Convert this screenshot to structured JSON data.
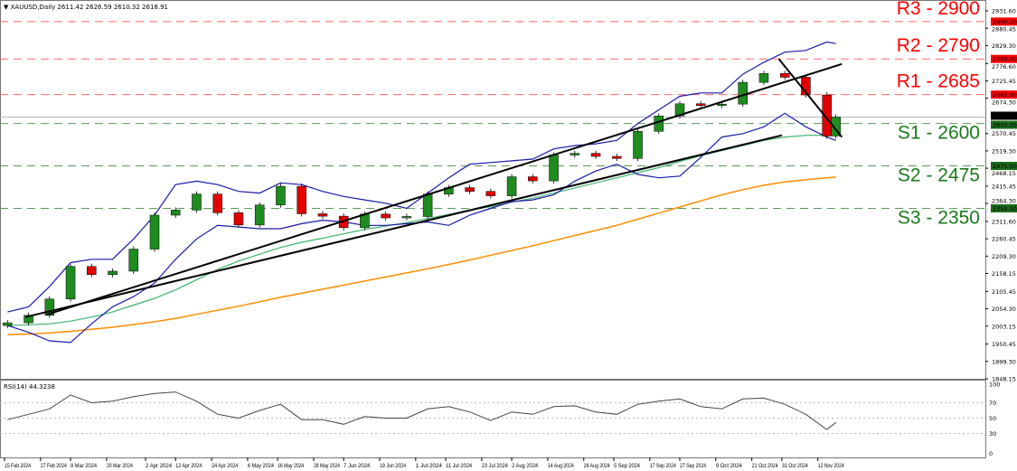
{
  "header": {
    "symbol": "XAUUSD,Daily",
    "open": "2611.42",
    "high": "2626.59",
    "low": "2610.32",
    "close": "2618.91",
    "collapse_icon": "triangle-down-icon"
  },
  "rsi_header": {
    "label": "RSI(14)",
    "value": "44.3238"
  },
  "colors": {
    "resistance": "#ff0000",
    "support": "#1a7a1a",
    "bullish": "#1e8c1e",
    "bearish": "#e00000",
    "bollinger": "#1a1aa8",
    "ma_fast": "#3cb371",
    "ma_slow": "#ff8c00",
    "trendline": "#000000",
    "rsi": "#444444"
  },
  "chart_data": {
    "type": "candlestick",
    "title": "XAUUSD,Daily",
    "ylim": [
      1848.15,
      2931.6
    ],
    "xlim": [
      "2024-02-15",
      "2024-11-20"
    ],
    "grid": false,
    "y_ticks": [
      "2931.60",
      "2880.45",
      "2829.30",
      "2776.60",
      "2725.45",
      "2674.30",
      "2570.45",
      "2519.30",
      "2468.15",
      "2415.45",
      "2364.30",
      "2311.60",
      "2260.45",
      "2209.30",
      "2158.15",
      "2105.45",
      "2054.30",
      "2003.15",
      "1950.45",
      "1899.30",
      "1848.15"
    ],
    "x_ticks": [
      "15 Feb 2024",
      "27 Feb 2024",
      "8 Mar 2024",
      "20 Mar 2024",
      "2 Apr 2024",
      "12 Apr 2024",
      "24 Apr 2024",
      "6 May 2024",
      "16 May 2024",
      "28 May 2024",
      "7 Jun 2024",
      "19 Jun 2024",
      "1 Jul 2024",
      "11 Jul 2024",
      "23 Jul 2024",
      "2 Aug 2024",
      "14 Aug 2024",
      "26 Aug 2024",
      "5 Sep 2024",
      "17 Sep 2024",
      "27 Sep 2024",
      "9 Oct 2024",
      "21 Oct 2024",
      "31 Oct 2024",
      "12 Nov 2024"
    ],
    "x_tick_dates": [
      "2024-02-15",
      "2024-02-27",
      "2024-03-08",
      "2024-03-20",
      "2024-04-02",
      "2024-04-12",
      "2024-04-24",
      "2024-05-06",
      "2024-05-16",
      "2024-05-28",
      "2024-06-07",
      "2024-06-19",
      "2024-07-01",
      "2024-07-11",
      "2024-07-23",
      "2024-08-02",
      "2024-08-14",
      "2024-08-26",
      "2024-09-05",
      "2024-09-17",
      "2024-09-27",
      "2024-10-09",
      "2024-10-21",
      "2024-10-31",
      "2024-11-12"
    ],
    "dates": [
      "2024-02-16",
      "2024-02-23",
      "2024-03-01",
      "2024-03-08",
      "2024-03-15",
      "2024-03-22",
      "2024-03-29",
      "2024-04-05",
      "2024-04-12",
      "2024-04-19",
      "2024-04-26",
      "2024-05-03",
      "2024-05-10",
      "2024-05-17",
      "2024-05-24",
      "2024-05-31",
      "2024-06-07",
      "2024-06-14",
      "2024-06-21",
      "2024-06-28",
      "2024-07-05",
      "2024-07-12",
      "2024-07-19",
      "2024-07-26",
      "2024-08-02",
      "2024-08-09",
      "2024-08-16",
      "2024-08-23",
      "2024-08-30",
      "2024-09-06",
      "2024-09-13",
      "2024-09-20",
      "2024-09-27",
      "2024-10-04",
      "2024-10-11",
      "2024-10-18",
      "2024-10-25",
      "2024-11-01",
      "2024-11-08",
      "2024-11-15",
      "2024-11-18"
    ],
    "close": [
      2013,
      2035,
      2083,
      2179,
      2155,
      2165,
      2230,
      2330,
      2345,
      2392,
      2337,
      2301,
      2360,
      2415,
      2334,
      2327,
      2293,
      2333,
      2322,
      2326,
      2392,
      2411,
      2400,
      2387,
      2443,
      2431,
      2507,
      2512,
      2503,
      2497,
      2577,
      2622,
      2658,
      2653,
      2657,
      2721,
      2747,
      2736,
      2684,
      2563,
      2618.91
    ],
    "bollinger_upper": [
      2045,
      2060,
      2120,
      2190,
      2200,
      2200,
      2260,
      2330,
      2420,
      2430,
      2420,
      2400,
      2395,
      2425,
      2420,
      2400,
      2385,
      2375,
      2365,
      2350,
      2395,
      2440,
      2480,
      2485,
      2490,
      2495,
      2525,
      2535,
      2540,
      2550,
      2600,
      2640,
      2680,
      2690,
      2690,
      2745,
      2780,
      2810,
      2815,
      2840,
      2835
    ],
    "bollinger_lower": [
      2005,
      1985,
      1960,
      1955,
      2010,
      2060,
      2090,
      2130,
      2200,
      2260,
      2300,
      2295,
      2290,
      2290,
      2305,
      2315,
      2310,
      2300,
      2300,
      2305,
      2310,
      2300,
      2330,
      2350,
      2370,
      2375,
      2390,
      2430,
      2460,
      2480,
      2450,
      2440,
      2445,
      2500,
      2560,
      2570,
      2590,
      2630,
      2590,
      2560,
      2550
    ],
    "ma_100": [
      2005,
      2007,
      2010,
      2018,
      2030,
      2045,
      2065,
      2085,
      2110,
      2140,
      2170,
      2195,
      2215,
      2235,
      2250,
      2262,
      2275,
      2288,
      2298,
      2308,
      2320,
      2332,
      2345,
      2355,
      2368,
      2380,
      2395,
      2410,
      2425,
      2440,
      2455,
      2470,
      2488,
      2505,
      2520,
      2535,
      2550,
      2560,
      2565,
      2565,
      2566
    ],
    "ma_200": [
      1978,
      1980,
      1983,
      1988,
      1994,
      2000,
      2008,
      2016,
      2026,
      2038,
      2050,
      2062,
      2075,
      2088,
      2100,
      2112,
      2124,
      2136,
      2148,
      2160,
      2172,
      2185,
      2198,
      2212,
      2226,
      2240,
      2255,
      2270,
      2285,
      2300,
      2318,
      2336,
      2354,
      2372,
      2390,
      2405,
      2418,
      2428,
      2434,
      2440,
      2442
    ],
    "trendlines": [
      {
        "from": [
          "2024-02-22",
          2030
        ],
        "to": [
          "2024-10-31",
          2565
        ]
      },
      {
        "from": [
          "2024-02-29",
          2037
        ],
        "to": [
          "2024-11-20",
          2775
        ]
      },
      {
        "from": [
          "2024-10-30",
          2790
        ],
        "to": [
          "2024-11-20",
          2560
        ]
      }
    ],
    "levels": [
      {
        "label": "R3 - 2900",
        "value": 2900,
        "tag": "2900.00",
        "kind": "resistance"
      },
      {
        "label": "R2 - 2790",
        "value": 2790,
        "tag": "2790.00",
        "kind": "resistance"
      },
      {
        "label": "R1 - 2685",
        "value": 2685,
        "tag": "2685.00",
        "kind": "resistance"
      },
      {
        "label": "S1 - 2600",
        "value": 2600,
        "tag": "2600.00",
        "kind": "support"
      },
      {
        "label": "S2 - 2475",
        "value": 2475,
        "tag": "2475.00",
        "kind": "support"
      },
      {
        "label": "S3 - 2350",
        "value": 2350,
        "tag": "2350.00",
        "kind": "support"
      }
    ],
    "current_price": {
      "value": 2618.91,
      "tag": "2618.91"
    },
    "rsi": {
      "period": 14,
      "ylim": [
        0,
        100
      ],
      "levels": [
        "100",
        "70",
        "50",
        "30",
        "0"
      ],
      "values": [
        48,
        55,
        62,
        80,
        70,
        72,
        78,
        82,
        84,
        72,
        55,
        50,
        60,
        68,
        48,
        48,
        42,
        52,
        50,
        50,
        62,
        65,
        58,
        47,
        58,
        55,
        65,
        66,
        58,
        55,
        68,
        72,
        75,
        65,
        62,
        75,
        76,
        68,
        55,
        35,
        44.32
      ]
    }
  }
}
